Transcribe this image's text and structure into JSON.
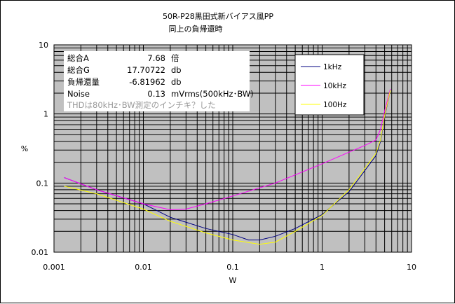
{
  "chart_data": {
    "type": "line",
    "title": "50R-P28黒田式新バイアス風PP",
    "subtitle": "同上の負帰還時",
    "xlabel": "W",
    "ylabel": "%",
    "x_scale": "log",
    "y_scale": "log",
    "xlim": [
      0.001,
      10
    ],
    "ylim": [
      0.01,
      10
    ],
    "x_ticks": [
      "0.001",
      "0.01",
      "0.1",
      "1",
      "10"
    ],
    "y_ticks": [
      "10",
      "1",
      "0.1",
      "0.01"
    ],
    "grid": true,
    "legend_position": "right",
    "series": [
      {
        "name": "1kHz",
        "color": "#000080",
        "points": [
          [
            0.0013,
            0.12
          ],
          [
            0.003,
            0.08
          ],
          [
            0.01,
            0.05
          ],
          [
            0.02,
            0.032
          ],
          [
            0.05,
            0.022
          ],
          [
            0.1,
            0.018
          ],
          [
            0.15,
            0.015
          ],
          [
            0.2,
            0.015
          ],
          [
            0.3,
            0.017
          ],
          [
            0.5,
            0.022
          ],
          [
            1,
            0.035
          ],
          [
            2,
            0.075
          ],
          [
            4,
            0.25
          ],
          [
            4.5,
            0.4
          ],
          [
            5,
            0.9
          ],
          [
            5.8,
            2.2
          ]
        ]
      },
      {
        "name": "10kHz",
        "color": "#ff00ff",
        "points": [
          [
            0.0013,
            0.12
          ],
          [
            0.003,
            0.08
          ],
          [
            0.01,
            0.05
          ],
          [
            0.02,
            0.041
          ],
          [
            0.03,
            0.042
          ],
          [
            0.05,
            0.05
          ],
          [
            0.1,
            0.065
          ],
          [
            0.3,
            0.1
          ],
          [
            1,
            0.19
          ],
          [
            2,
            0.28
          ],
          [
            3,
            0.35
          ],
          [
            4,
            0.42
          ],
          [
            4.5,
            0.6
          ],
          [
            5,
            1.1
          ],
          [
            5.8,
            2.3
          ]
        ]
      },
      {
        "name": "100Hz",
        "color": "#ffff00",
        "points": [
          [
            0.0013,
            0.09
          ],
          [
            0.003,
            0.07
          ],
          [
            0.01,
            0.042
          ],
          [
            0.02,
            0.028
          ],
          [
            0.05,
            0.019
          ],
          [
            0.1,
            0.015
          ],
          [
            0.2,
            0.013
          ],
          [
            0.3,
            0.014
          ],
          [
            0.5,
            0.02
          ],
          [
            1,
            0.034
          ],
          [
            2,
            0.08
          ],
          [
            4,
            0.27
          ],
          [
            4.5,
            0.42
          ],
          [
            5,
            0.95
          ],
          [
            5.8,
            2.2
          ]
        ]
      }
    ],
    "annotations": [
      {
        "label": "総合A",
        "value": "7.68",
        "unit": "倍"
      },
      {
        "label": "総合G",
        "value": "17.70722",
        "unit": "db"
      },
      {
        "label": "負帰還量",
        "value": "-6.81962",
        "unit": "db"
      },
      {
        "label": "Noise",
        "value": "0.13",
        "unit": "mVrms(500kHz･BW)"
      }
    ],
    "note": "THDは80kHz･BW測定のインチキ？した"
  },
  "colors": {
    "plot_background": "#c0c0c0",
    "grid": "#000000"
  }
}
